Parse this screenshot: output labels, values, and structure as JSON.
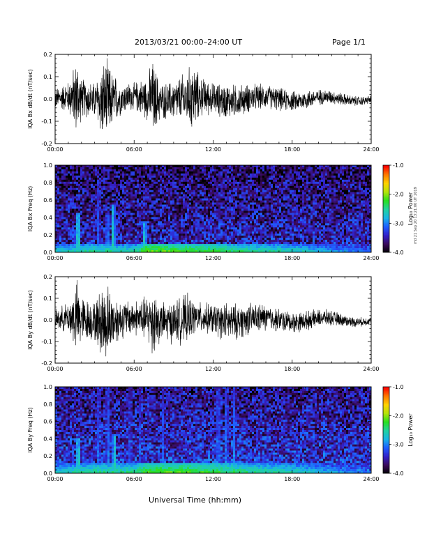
{
  "header": {
    "title": "2013/03/21   00:00–24:00 UT",
    "page": "Page 1/1"
  },
  "xlabel": "Universal Time (hh:mm)",
  "side_info": "mtl 21 Sep 20 13:21:00 UT 2019",
  "colors": {
    "trace": "#000000",
    "colorscale": [
      "#000000",
      "#3a0a5a",
      "#3320c8",
      "#1f5cff",
      "#1ab4e6",
      "#20d2a0",
      "#27e020",
      "#b4e40a",
      "#ffd200",
      "#ff7800",
      "#ff0000"
    ]
  },
  "chart_data": [
    {
      "type": "line",
      "ylabel": "IQA Bx dB/dt (nT/sec)",
      "xticks": [
        "00:00",
        "06:00",
        "12:00",
        "18:00",
        "24:00"
      ],
      "yticks": [
        "0.2",
        "0.1",
        "0.0",
        "-0.1",
        "-0.2"
      ],
      "xlim": [
        0,
        24
      ],
      "ylim": [
        -0.2,
        0.2
      ],
      "series": [
        {
          "x": [
            0,
            1,
            1.7,
            2,
            3,
            3.6,
            4,
            4.3,
            5,
            6,
            7,
            7.4,
            8,
            9,
            10,
            10.5,
            11,
            12,
            13,
            14,
            15,
            16,
            17,
            18,
            19,
            20,
            21,
            22,
            23,
            24
          ],
          "amplitude": [
            0.05,
            0.08,
            0.2,
            0.1,
            0.09,
            0.2,
            0.2,
            0.15,
            0.08,
            0.07,
            0.11,
            0.2,
            0.09,
            0.1,
            0.14,
            0.18,
            0.1,
            0.08,
            0.09,
            0.08,
            0.07,
            0.06,
            0.06,
            0.05,
            0.05,
            0.04,
            0.035,
            0.03,
            0.025,
            0.02
          ]
        }
      ]
    },
    {
      "type": "heatmap",
      "ylabel": "IQA Bx Freq (Hz)",
      "colorbar_label": "Log₁₀ Power",
      "colorbar_ticks": [
        "-1.0",
        "-2.0",
        "-3.0",
        "-4.0"
      ],
      "zlim": [
        -4.0,
        -1.0
      ],
      "xticks": [
        "00:00",
        "06:00",
        "12:00",
        "18:00",
        "24:00"
      ],
      "yticks": [
        "1.0",
        "0.8",
        "0.6",
        "0.4",
        "0.2",
        "0.0"
      ],
      "xlim": [
        0,
        24
      ],
      "ylim": [
        0,
        1.0
      ],
      "features": {
        "background_log_power": -3.4,
        "low_freq_band": {
          "x": [
            0,
            3,
            6,
            7,
            9,
            12,
            15,
            18,
            21,
            24
          ],
          "log_power": [
            -2.6,
            -2.4,
            -2.5,
            -2.0,
            -2.1,
            -2.2,
            -2.4,
            -2.5,
            -2.8,
            -3.0
          ],
          "freq_top": 0.1
        },
        "bursts": [
          {
            "t": 1.75,
            "log_power": -2.2,
            "freq_top": 0.45
          },
          {
            "t": 3.3,
            "log_power": -2.8,
            "freq_top": 0.8
          },
          {
            "t": 4.0,
            "log_power": -2.6,
            "freq_top": 0.45
          },
          {
            "t": 4.4,
            "log_power": -2.3,
            "freq_top": 0.55
          },
          {
            "t": 6.8,
            "log_power": -2.3,
            "freq_top": 0.35
          }
        ]
      }
    },
    {
      "type": "line",
      "ylabel": "IQA By dB/dt (nT/sec)",
      "xticks": [
        "00:00",
        "06:00",
        "12:00",
        "18:00",
        "24:00"
      ],
      "yticks": [
        "0.2",
        "0.1",
        "0.0",
        "-0.1",
        "-0.2"
      ],
      "xlim": [
        0,
        24
      ],
      "ylim": [
        -0.2,
        0.2
      ],
      "series": [
        {
          "x": [
            0,
            1,
            1.7,
            2,
            3,
            3.6,
            4,
            4.3,
            5,
            6,
            7,
            7.4,
            8,
            9,
            10,
            10.5,
            11,
            12,
            13,
            14,
            15,
            16,
            17,
            18,
            19,
            20,
            21,
            22,
            23,
            24
          ],
          "amplitude": [
            0.05,
            0.08,
            0.2,
            0.12,
            0.1,
            0.2,
            0.2,
            0.15,
            0.1,
            0.09,
            0.12,
            0.2,
            0.1,
            0.11,
            0.13,
            0.09,
            0.08,
            0.08,
            0.1,
            0.09,
            0.08,
            0.07,
            0.06,
            0.055,
            0.05,
            0.045,
            0.04,
            0.03,
            0.025,
            0.02
          ]
        }
      ]
    },
    {
      "type": "heatmap",
      "ylabel": "IQA By Freq (Hz)",
      "colorbar_label": "Log₁₀ Power",
      "colorbar_ticks": [
        "-1.0",
        "-2.0",
        "-3.0",
        "-4.0"
      ],
      "zlim": [
        -4.0,
        -1.0
      ],
      "xticks": [
        "00:00",
        "06:00",
        "12:00",
        "18:00",
        "24:00"
      ],
      "yticks": [
        "1.0",
        "0.8",
        "0.6",
        "0.4",
        "0.2",
        "0.0"
      ],
      "xlim": [
        0,
        24
      ],
      "ylim": [
        0,
        1.0
      ],
      "features": {
        "background_log_power": -3.3,
        "low_freq_band": {
          "x": [
            0,
            3,
            6,
            7,
            9,
            12,
            15,
            18,
            21,
            24
          ],
          "log_power": [
            -2.6,
            -2.4,
            -2.4,
            -2.1,
            -2.1,
            -2.2,
            -2.4,
            -2.5,
            -2.8,
            -3.0
          ],
          "freq_top": 0.12
        },
        "bursts": [
          {
            "t": 1.75,
            "log_power": -2.2,
            "freq_top": 0.4
          },
          {
            "t": 3.3,
            "log_power": -2.8,
            "freq_top": 1.0
          },
          {
            "t": 4.0,
            "log_power": -2.7,
            "freq_top": 1.0
          },
          {
            "t": 4.5,
            "log_power": -2.3,
            "freq_top": 0.45
          },
          {
            "t": 5.7,
            "log_power": -2.9,
            "freq_top": 1.0
          },
          {
            "t": 6.5,
            "log_power": -2.9,
            "freq_top": 1.0
          },
          {
            "t": 8.2,
            "log_power": -2.9,
            "freq_top": 1.0
          },
          {
            "t": 12.4,
            "log_power": -2.7,
            "freq_top": 1.0
          },
          {
            "t": 13.0,
            "log_power": -2.7,
            "freq_top": 1.0
          },
          {
            "t": 13.6,
            "log_power": -2.8,
            "freq_top": 1.0
          }
        ]
      }
    }
  ]
}
